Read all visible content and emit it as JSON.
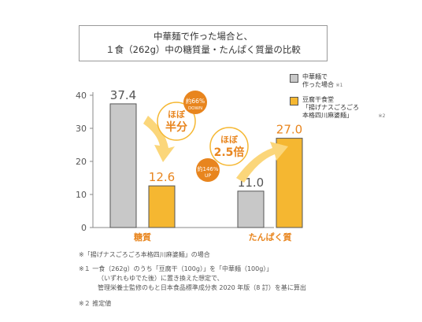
{
  "title": {
    "line1": "中華麺で作った場合と、",
    "line2": "１食（262g）中の糖質量・たんぱく質量の比較"
  },
  "legend": [
    {
      "line1": "中華麺で",
      "line2": "作った場合",
      "note": "※1",
      "color": "#c8c8c8"
    },
    {
      "line1": "豆腐干食堂",
      "line2": "「揚げナスごろごろ",
      "line3": "本格四川麻婆麺」",
      "note": "※2",
      "color": "#f5b731"
    }
  ],
  "callouts": {
    "half_line1": "ほぼ",
    "half_line2": "半分",
    "down_pct": "約66%",
    "down_word": "DOWN",
    "times_line1": "ほぼ",
    "times_line2": "2.5倍",
    "up_pct": "約146%",
    "up_word": "UP"
  },
  "chart_data": {
    "type": "bar",
    "categories": [
      "糖質",
      "たんぱく質"
    ],
    "series": [
      {
        "name": "中華麺で作った場合",
        "values": [
          37.4,
          11.0
        ],
        "color": "#c8c8c8"
      },
      {
        "name": "豆腐干食堂「揚げナスごろごろ本格四川麻婆麺」",
        "values": [
          12.6,
          27.0
        ],
        "color": "#f5b731"
      }
    ],
    "value_labels": [
      "37.4",
      "12.6",
      "11.0",
      "27.0"
    ],
    "yticks": [
      0,
      10,
      20,
      30,
      40
    ],
    "ylim": [
      0,
      40
    ]
  },
  "notes": [
    "※「揚げナスごろごろ本格四川麻婆麺」の場合",
    "※１ 一食（262g）のうち「豆腐干（100g）」を「中華麺（100g）」",
    "（いずれもゆでた後）に置き換えた想定で、",
    "管理栄養士監修のもと日本食品標準成分表 2020 年版（8 訂）を基に算出",
    "※２ 推定値"
  ]
}
